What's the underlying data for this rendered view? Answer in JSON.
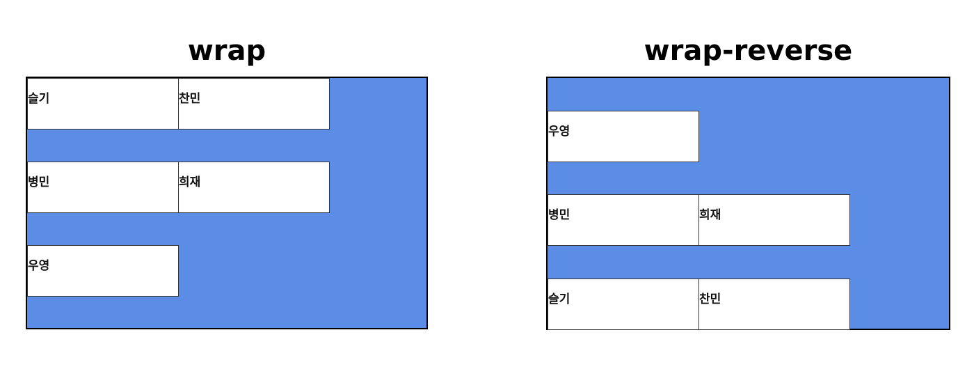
{
  "panels": [
    {
      "title": "wrap",
      "items": [
        "슬기",
        "찬민",
        "병민",
        "희재",
        "우영"
      ]
    },
    {
      "title": "wrap-reverse",
      "items": [
        "슬기",
        "찬민",
        "병민",
        "희재",
        "우영"
      ]
    }
  ],
  "colors": {
    "container_background": "#5b8de6",
    "item_background": "#ffffff",
    "border": "#000000"
  }
}
